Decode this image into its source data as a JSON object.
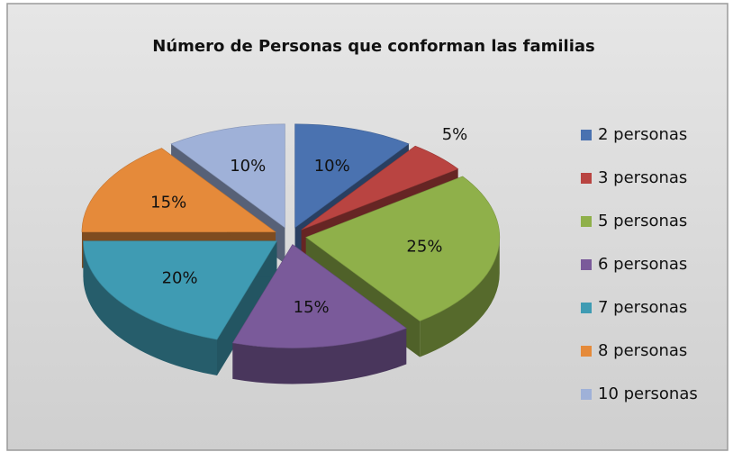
{
  "chart_data": {
    "type": "pie3d",
    "title": "Número de Personas que conforman las familias",
    "categories": [
      "2 personas",
      "3 personas",
      "5 personas",
      "6 personas",
      "7 personas",
      "8 personas",
      "10 personas"
    ],
    "values": [
      10,
      5,
      25,
      15,
      20,
      15,
      10
    ],
    "value_labels": [
      "10%",
      "5%",
      "25%",
      "15%",
      "20%",
      "15%",
      "10%"
    ],
    "colors": [
      "#4a72b0",
      "#b94441",
      "#8fb04a",
      "#7a5a9a",
      "#3f9bb3",
      "#e58a3a",
      "#9fb1d8"
    ],
    "legend": "right"
  }
}
